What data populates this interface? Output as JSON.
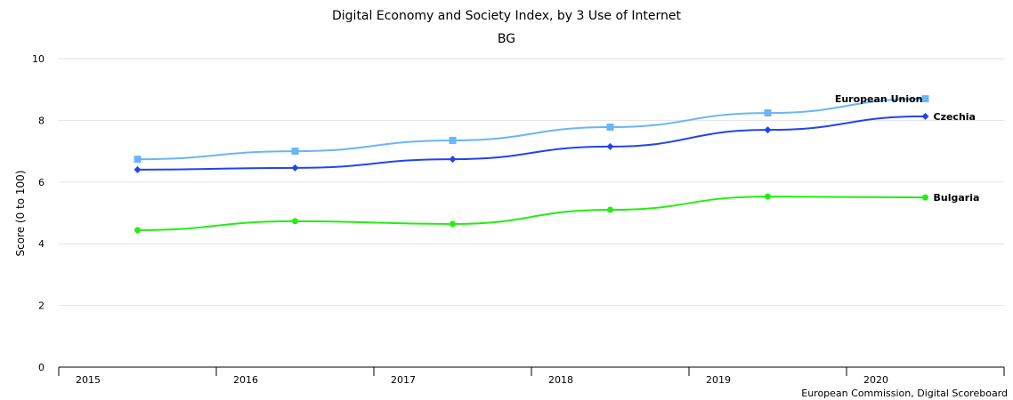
{
  "chart_data": {
    "type": "line",
    "title": "Digital Economy and Society Index, by 3 Use of Internet",
    "subtitle": "BG",
    "xlabel": "",
    "ylabel": "Score (0 to 100)",
    "ylim": [
      0,
      10
    ],
    "yticks": [
      "0",
      "2",
      "4",
      "6",
      "8",
      "10"
    ],
    "categories": [
      "2015",
      "2016",
      "2017",
      "2018",
      "2019",
      "2020"
    ],
    "grid": true,
    "series": [
      {
        "name": "European Union",
        "color": "#6ab4f8",
        "marker": "square",
        "values": [
          6.74,
          7.0,
          7.35,
          7.78,
          8.24,
          8.7
        ]
      },
      {
        "name": "Czechia",
        "color": "#2244ee",
        "marker": "diamond",
        "values": [
          6.4,
          6.46,
          6.74,
          7.15,
          7.69,
          8.13
        ]
      },
      {
        "name": "Bulgaria",
        "color": "#22ee11",
        "marker": "circle",
        "values": [
          4.44,
          4.73,
          4.64,
          5.1,
          5.53,
          5.5
        ]
      }
    ],
    "source": "European Commission, Digital Scoreboard"
  }
}
